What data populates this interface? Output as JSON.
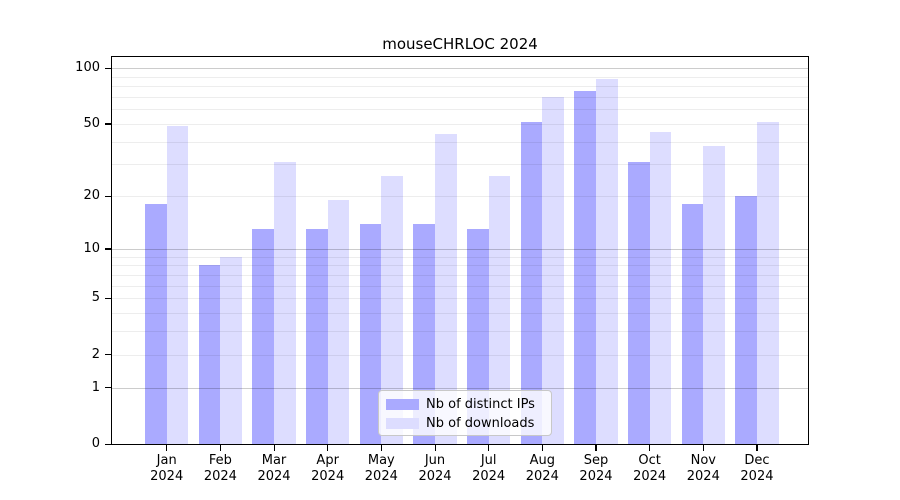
{
  "page": {
    "background": "#ffffff"
  },
  "chart_data": {
    "type": "bar",
    "title": "mouseCHRLOC 2024",
    "year_label": "2024",
    "categories": [
      "Jan",
      "Feb",
      "Mar",
      "Apr",
      "May",
      "Jun",
      "Jul",
      "Aug",
      "Sep",
      "Oct",
      "Nov",
      "Dec"
    ],
    "series": [
      {
        "name": "Nb of distinct IPs",
        "color": "#aaaaff",
        "values": [
          18,
          8,
          13,
          13,
          14,
          14,
          13,
          51,
          75,
          31,
          18,
          20
        ]
      },
      {
        "name": "Nb of downloads",
        "color": "#ddddff",
        "values": [
          49,
          9,
          31,
          19,
          26,
          44,
          26,
          70,
          88,
          45,
          38,
          51
        ]
      }
    ],
    "yscale": "log1p",
    "ylim": [
      0,
      115
    ],
    "y_ticks": [
      0,
      1,
      2,
      5,
      10,
      20,
      50,
      100
    ],
    "grid": true,
    "grid_minor_color": "rgba(0,0,0,0.07)",
    "grid_major_color": "rgba(0,0,0,0.20)",
    "axis_color": "#000000",
    "legend_position": "lower center"
  }
}
